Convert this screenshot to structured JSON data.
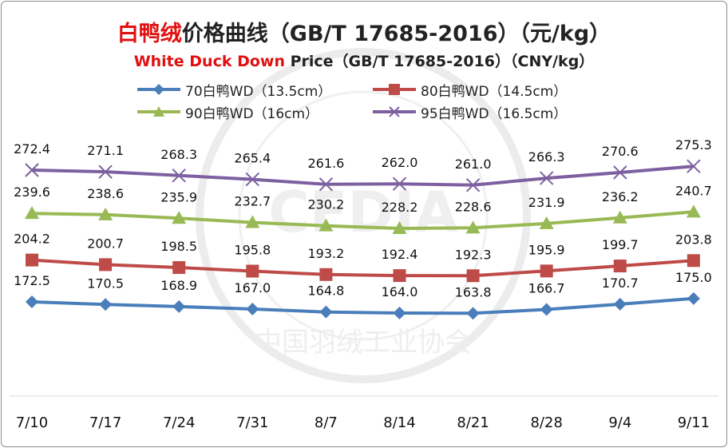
{
  "title": {
    "cn_highlight": "白鸭绒",
    "cn_rest": "价格曲线（GB/T 17685-2016）（元/kg）",
    "en_highlight": "White Duck Down",
    "en_rest": " Price（GB/T 17685-2016）（CNY/kg）"
  },
  "colors": {
    "s70": "#4a7ebb",
    "s80": "#be4b48",
    "s90": "#98b954",
    "s95": "#7d60a0",
    "title_red": "#e01010"
  },
  "chart_data": {
    "type": "line",
    "categories": [
      "7/10",
      "7/17",
      "7/24",
      "7/31",
      "8/7",
      "8/14",
      "8/21",
      "8/28",
      "9/4",
      "9/11"
    ],
    "series": [
      {
        "name": "70白鸭WD（13.5cm）",
        "marker": "diamond",
        "values": [
          172.5,
          170.5,
          168.9,
          167.0,
          164.8,
          164.0,
          163.8,
          166.7,
          170.7,
          175.0
        ],
        "labels": [
          "172.5",
          "170.5",
          "168.9",
          "167.0",
          "164.8",
          "164.0",
          "163.8",
          "166.7",
          "170.7",
          "175.0"
        ]
      },
      {
        "name": "80白鸭WD（14.5cm）",
        "marker": "square",
        "values": [
          204.2,
          200.7,
          198.5,
          195.8,
          193.2,
          192.4,
          192.3,
          195.9,
          199.7,
          203.8
        ],
        "labels": [
          "204.2",
          "200.7",
          "198.5",
          "195.8",
          "193.2",
          "192.4",
          "192.3",
          "195.9",
          "199.7",
          "203.8"
        ]
      },
      {
        "name": "90白鸭WD（16cm）",
        "marker": "triangle",
        "values": [
          239.6,
          238.6,
          235.9,
          232.7,
          230.2,
          228.2,
          228.6,
          231.9,
          236.2,
          240.7
        ],
        "labels": [
          "239.6",
          "238.6",
          "235.9",
          "232.7",
          "230.2",
          "228.2",
          "228.6",
          "231.9",
          "236.2",
          "240.7"
        ]
      },
      {
        "name": "95白鸭WD（16.5cm）",
        "marker": "x",
        "values": [
          272.4,
          271.1,
          268.3,
          265.4,
          261.6,
          262.0,
          261.0,
          266.3,
          270.6,
          275.3
        ],
        "labels": [
          "272.4",
          "271.1",
          "268.3",
          "265.4",
          "261.6",
          "262.0",
          "261.0",
          "266.3",
          "270.6",
          "275.3"
        ]
      }
    ],
    "ylim": [
      140,
      290
    ],
    "grid": false,
    "legend_position": "top"
  },
  "watermark": {
    "logo": "CFDIA",
    "arc_text": "中国羽绒工业协会"
  }
}
